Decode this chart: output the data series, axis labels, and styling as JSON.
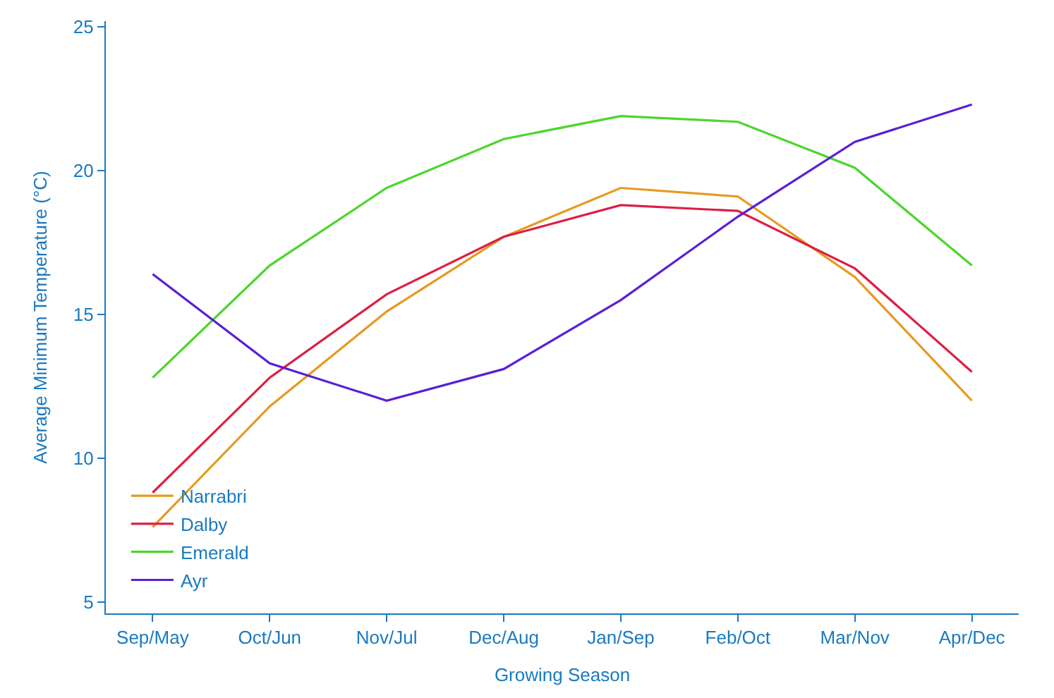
{
  "chart_data": {
    "type": "line",
    "xlabel": "Growing Season",
    "ylabel": "Average Minimum Temperature (°C)",
    "categories": [
      "Sep/May",
      "Oct/Jun",
      "Nov/Jul",
      "Dec/Aug",
      "Jan/Sep",
      "Feb/Oct",
      "Mar/Nov",
      "Apr/Dec"
    ],
    "series": [
      {
        "name": "Narrabri",
        "color": "#e69a1e",
        "values": [
          7.6,
          11.8,
          15.1,
          17.7,
          19.4,
          19.1,
          16.3,
          12.0
        ]
      },
      {
        "name": "Dalby",
        "color": "#dc1f45",
        "values": [
          8.8,
          12.8,
          15.7,
          17.7,
          18.8,
          18.6,
          16.6,
          13.0
        ]
      },
      {
        "name": "Emerald",
        "color": "#4cd62b",
        "values": [
          12.8,
          16.7,
          19.4,
          21.1,
          21.9,
          21.7,
          20.1,
          16.7
        ]
      },
      {
        "name": "Ayr",
        "color": "#5a1fd6",
        "values": [
          16.4,
          13.3,
          12.0,
          13.1,
          15.5,
          18.4,
          21.0,
          22.3
        ]
      }
    ],
    "ylim": [
      4.6,
      25.2
    ],
    "yticks": [
      5,
      10,
      15,
      20,
      25
    ],
    "legend": "bottom left",
    "marker": "none",
    "line_style": "solid"
  }
}
